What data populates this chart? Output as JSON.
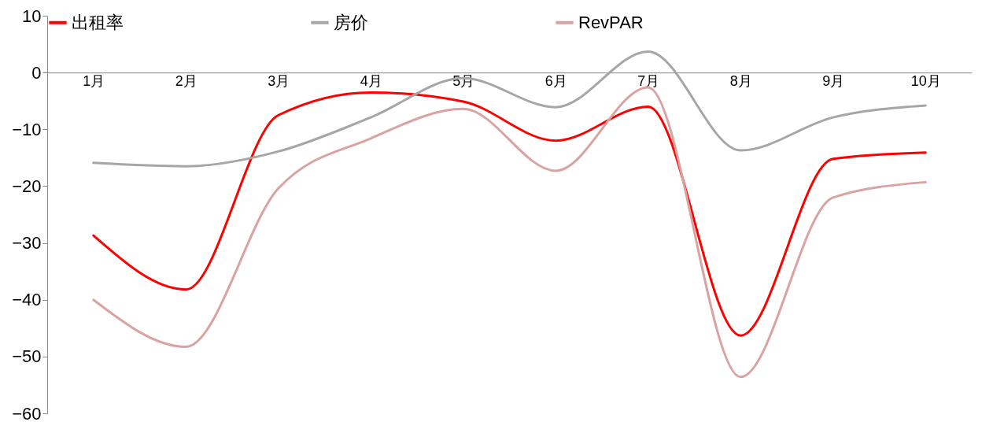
{
  "chart_data": {
    "type": "line",
    "categories": [
      "1月",
      "2月",
      "3月",
      "4月",
      "5月",
      "6月",
      "7月",
      "8月",
      "9月",
      "10月"
    ],
    "series": [
      {
        "name": "出租率",
        "color": "#ff0000",
        "values": [
          -28.7,
          -38.2,
          -7.5,
          -3.5,
          -5.1,
          -12.0,
          -6.0,
          -46.3,
          -15.2,
          -14.1
        ]
      },
      {
        "name": "房价",
        "color": "#a6a6a6",
        "values": [
          -15.9,
          -16.5,
          -13.9,
          -7.9,
          -1.0,
          -6.1,
          3.7,
          -13.7,
          -7.9,
          -5.8
        ]
      },
      {
        "name": "RevPAR",
        "color": "#d9a3a3",
        "values": [
          -40.0,
          -48.3,
          -20.4,
          -11.6,
          -6.4,
          -17.3,
          -2.6,
          -53.6,
          -22.0,
          -19.3
        ]
      }
    ],
    "ylim": [
      -60,
      10
    ],
    "yticks": [
      -60,
      -50,
      -40,
      -30,
      -20,
      -10,
      0,
      10
    ],
    "grid": false,
    "legend": "top",
    "marker": "none",
    "line_style": "solid"
  }
}
